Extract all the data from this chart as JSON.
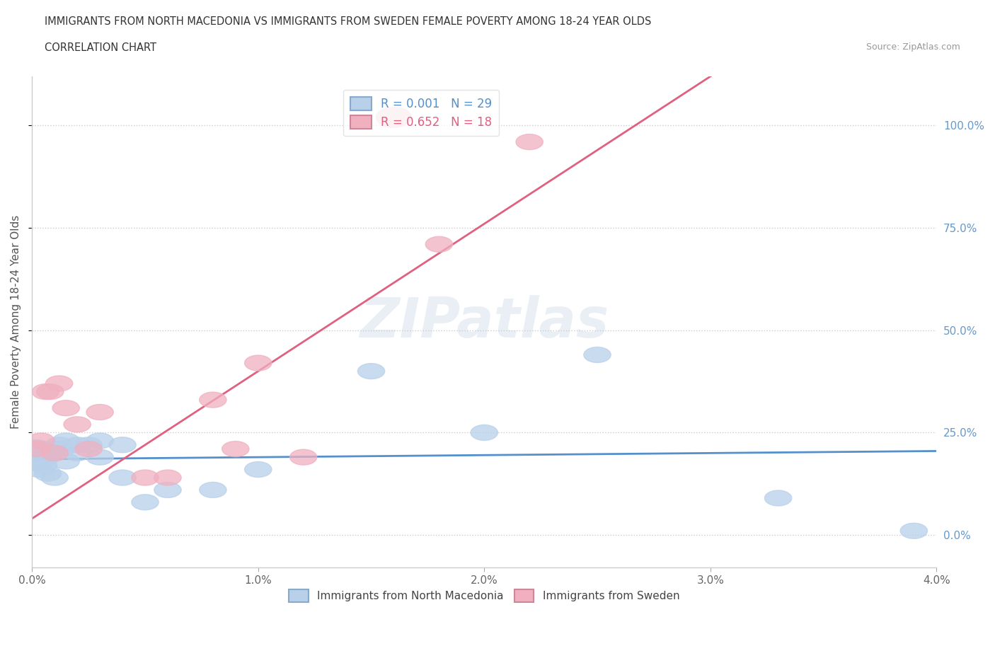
{
  "title": "IMMIGRANTS FROM NORTH MACEDONIA VS IMMIGRANTS FROM SWEDEN FEMALE POVERTY AMONG 18-24 YEAR OLDS",
  "subtitle": "CORRELATION CHART",
  "source": "Source: ZipAtlas.com",
  "ylabel": "Female Poverty Among 18-24 Year Olds",
  "xlim": [
    0.0,
    0.04
  ],
  "ylim": [
    -0.08,
    1.12
  ],
  "watermark": "ZIPatlas",
  "legend1_label": "R = 0.001   N = 29",
  "legend2_label": "R = 0.652   N = 18",
  "blue_color": "#b8d0ea",
  "pink_color": "#f0b0c0",
  "blue_line_color": "#5590cc",
  "pink_line_color": "#e06080",
  "ytick_labels": [
    "0.0%",
    "25.0%",
    "50.0%",
    "75.0%",
    "100.0%"
  ],
  "ytick_vals": [
    0.0,
    0.25,
    0.5,
    0.75,
    1.0
  ],
  "xtick_labels": [
    "0.0%",
    "1.0%",
    "2.0%",
    "3.0%",
    "4.0%"
  ],
  "xtick_vals": [
    0.0,
    0.01,
    0.02,
    0.03,
    0.04
  ],
  "blue_x": [
    0.0002,
    0.0003,
    0.0004,
    0.0005,
    0.0006,
    0.0007,
    0.0008,
    0.001,
    0.001,
    0.0012,
    0.0013,
    0.0015,
    0.0015,
    0.002,
    0.002,
    0.0025,
    0.003,
    0.003,
    0.004,
    0.004,
    0.005,
    0.006,
    0.008,
    0.01,
    0.015,
    0.02,
    0.025,
    0.033,
    0.039
  ],
  "blue_y": [
    0.19,
    0.16,
    0.18,
    0.17,
    0.19,
    0.15,
    0.2,
    0.21,
    0.14,
    0.22,
    0.21,
    0.23,
    0.18,
    0.22,
    0.2,
    0.22,
    0.23,
    0.19,
    0.22,
    0.14,
    0.08,
    0.11,
    0.11,
    0.16,
    0.4,
    0.25,
    0.44,
    0.09,
    0.01
  ],
  "pink_x": [
    0.0002,
    0.0004,
    0.0006,
    0.0008,
    0.001,
    0.0012,
    0.0015,
    0.002,
    0.0025,
    0.003,
    0.005,
    0.006,
    0.008,
    0.009,
    0.01,
    0.012,
    0.018,
    0.022
  ],
  "pink_y": [
    0.21,
    0.23,
    0.35,
    0.35,
    0.2,
    0.37,
    0.31,
    0.27,
    0.21,
    0.3,
    0.14,
    0.14,
    0.33,
    0.21,
    0.42,
    0.19,
    0.71,
    0.96
  ],
  "blue_slope": 0.5,
  "blue_intercept": 0.185,
  "pink_slope": 36.0,
  "pink_intercept": 0.04
}
